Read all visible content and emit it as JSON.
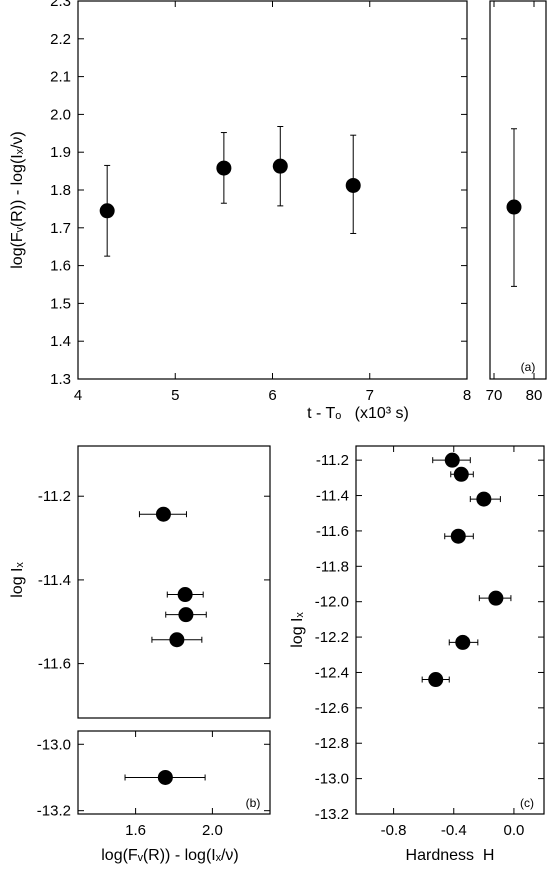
{
  "chart_data": [
    {
      "id": "a-left",
      "type": "scatter",
      "panel_label": "",
      "xlabel": "t - Tₒ   (x10³ s)",
      "ylabel": "log(Fᵥ(R)) - log(Iₓ/ν)",
      "xlim": [
        4,
        8
      ],
      "ylim": [
        1.3,
        2.3
      ],
      "x_ticks": [
        4,
        5,
        6,
        7,
        8
      ],
      "x_tick_labels": [
        "4",
        "5",
        "6",
        "7",
        "8"
      ],
      "y_ticks": [
        1.3,
        1.4,
        1.5,
        1.6,
        1.7,
        1.8,
        1.9,
        2.0,
        2.1,
        2.2,
        2.3
      ],
      "y_tick_labels": [
        "1.3",
        "1.4",
        "1.5",
        "1.6",
        "1.7",
        "1.8",
        "1.9",
        "2.0",
        "2.1",
        "2.2",
        "2.3"
      ],
      "points": [
        {
          "x": 4.3,
          "y": 1.745,
          "ylo": 1.625,
          "yhi": 1.865
        },
        {
          "x": 5.5,
          "y": 1.858,
          "ylo": 1.765,
          "yhi": 1.952
        },
        {
          "x": 6.08,
          "y": 1.863,
          "ylo": 1.758,
          "yhi": 1.968
        },
        {
          "x": 6.83,
          "y": 1.812,
          "ylo": 1.685,
          "yhi": 1.945
        }
      ]
    },
    {
      "id": "a-right",
      "type": "scatter",
      "panel_label": "(a)",
      "xlim": [
        69,
        83
      ],
      "ylim": [
        1.3,
        2.3
      ],
      "x_ticks": [
        70,
        80
      ],
      "x_tick_labels": [
        "70",
        "80"
      ],
      "points": [
        {
          "x": 75,
          "y": 1.755,
          "ylo": 1.545,
          "yhi": 1.962
        }
      ]
    },
    {
      "id": "b-top",
      "type": "scatter",
      "panel_label": "",
      "ylabel": "log Iₓ",
      "xlim": [
        1.3,
        2.3
      ],
      "ylim": [
        -11.73,
        -11.08
      ],
      "y_ticks": [
        -11.2,
        -11.4,
        -11.6
      ],
      "y_tick_labels": [
        "-11.2",
        "-11.4",
        "-11.6"
      ],
      "points": [
        {
          "x": 1.745,
          "y": -11.243,
          "xlo": 1.62,
          "xhi": 1.865
        },
        {
          "x": 1.858,
          "y": -11.435,
          "xlo": 1.765,
          "xhi": 1.952
        },
        {
          "x": 1.862,
          "y": -11.483,
          "xlo": 1.757,
          "xhi": 1.968
        },
        {
          "x": 1.815,
          "y": -11.543,
          "xlo": 1.685,
          "xhi": 1.945
        }
      ]
    },
    {
      "id": "b-bottom",
      "type": "scatter",
      "panel_label": "(b)",
      "xlabel": "log(Fᵥ(R)) - log(Iₓ/ν)",
      "xlim": [
        1.3,
        2.3
      ],
      "ylim": [
        -13.21,
        -12.96
      ],
      "x_ticks": [
        1.6,
        2.0
      ],
      "x_tick_labels": [
        "1.6",
        "2.0"
      ],
      "y_ticks": [
        -13.0,
        -13.2
      ],
      "y_tick_labels": [
        "-13.0",
        "-13.2"
      ],
      "points": [
        {
          "x": 1.755,
          "y": -13.1,
          "xlo": 1.545,
          "xhi": 1.962
        }
      ]
    },
    {
      "id": "c",
      "type": "scatter",
      "panel_label": "(c)",
      "xlabel": "Hardness  H",
      "ylabel": "log Iₓ",
      "xlim": [
        -1.05,
        0.2
      ],
      "ylim": [
        -13.2,
        -11.12
      ],
      "x_ticks": [
        -0.8,
        -0.4,
        0.0
      ],
      "x_tick_labels": [
        "-0.8",
        "-0.4",
        "0.0"
      ],
      "y_ticks": [
        -11.2,
        -11.4,
        -11.6,
        -11.8,
        -12.0,
        -12.2,
        -12.4,
        -12.6,
        -12.8,
        -13.0,
        -13.2
      ],
      "y_tick_labels": [
        "-11.2",
        "-11.4",
        "-11.6",
        "-11.8",
        "-12.0",
        "-12.2",
        "-12.4",
        "-12.6",
        "-12.8",
        "-13.0",
        "-13.2"
      ],
      "points": [
        {
          "x": -0.41,
          "y": -11.2,
          "xlo": -0.54,
          "xhi": -0.29
        },
        {
          "x": -0.35,
          "y": -11.28,
          "xlo": -0.42,
          "xhi": -0.27
        },
        {
          "x": -0.2,
          "y": -11.42,
          "xlo": -0.29,
          "xhi": -0.09
        },
        {
          "x": -0.37,
          "y": -11.63,
          "xlo": -0.46,
          "xhi": -0.27
        },
        {
          "x": -0.12,
          "y": -11.98,
          "xlo": -0.23,
          "xhi": -0.02
        },
        {
          "x": -0.34,
          "y": -12.23,
          "xlo": -0.43,
          "xhi": -0.24
        },
        {
          "x": -0.52,
          "y": -12.44,
          "xlo": -0.61,
          "xhi": -0.43
        }
      ]
    }
  ]
}
